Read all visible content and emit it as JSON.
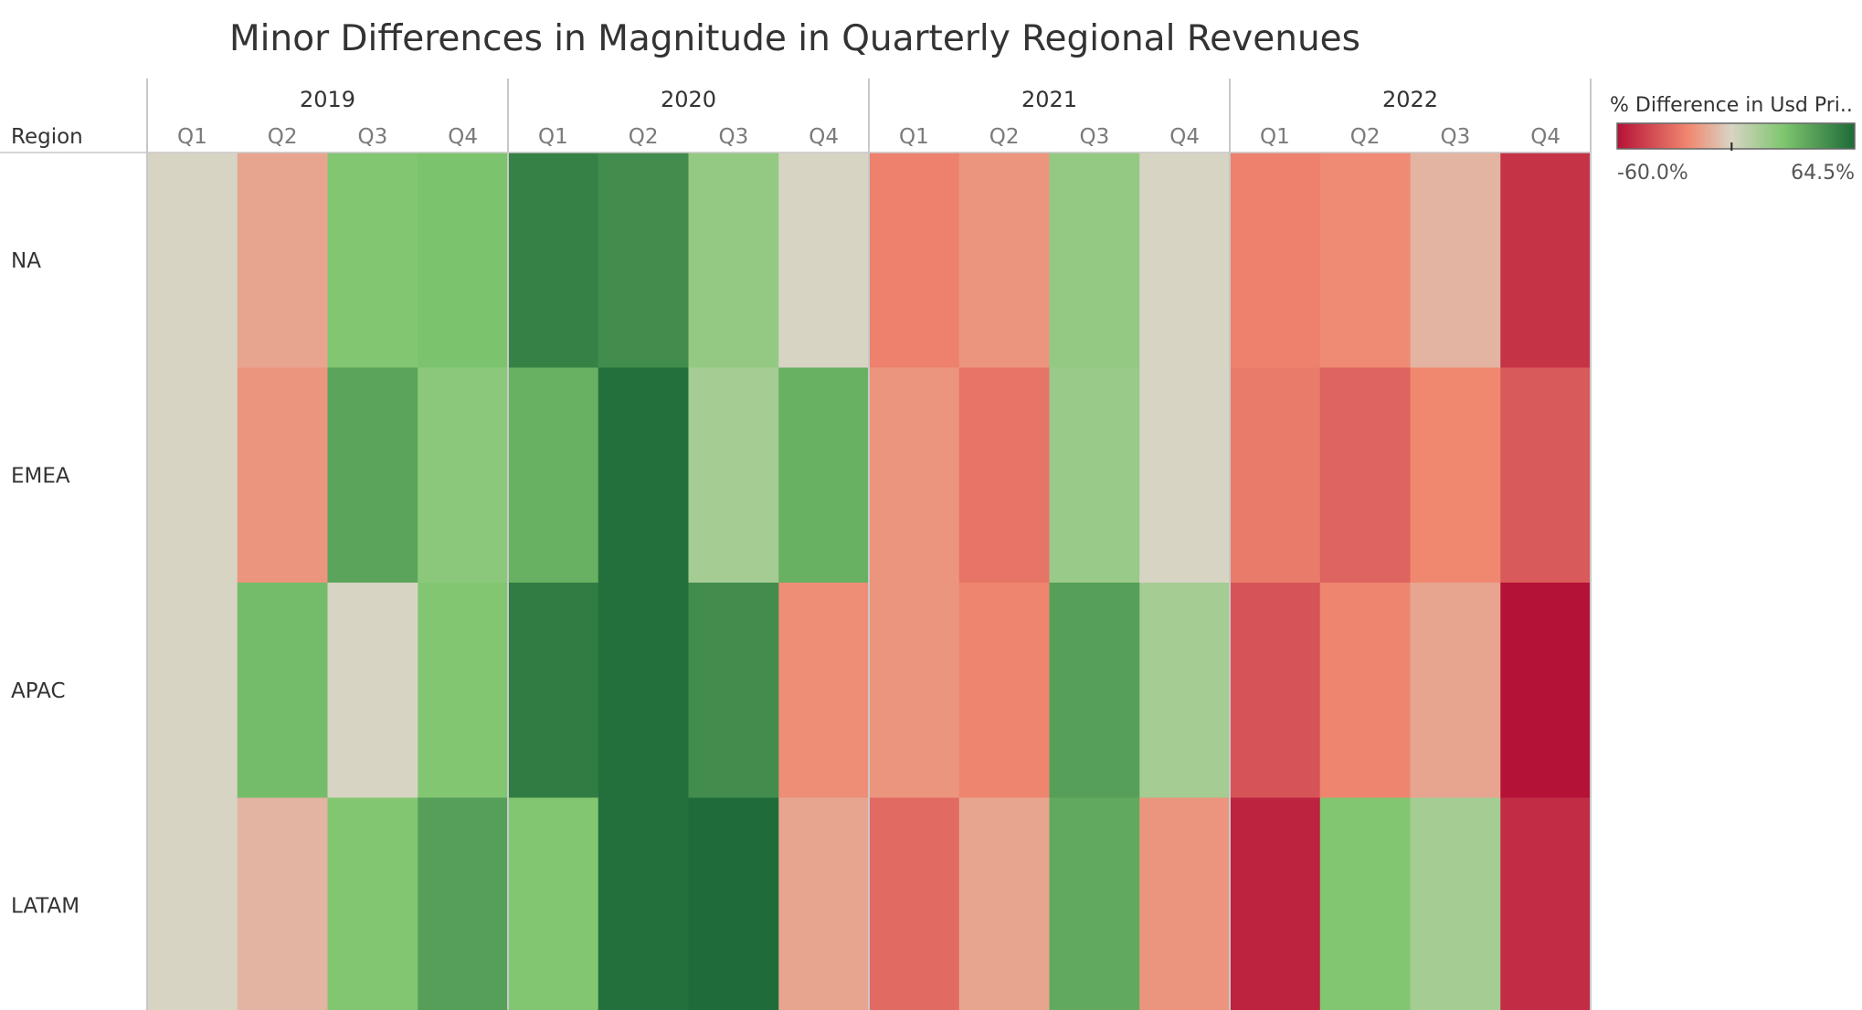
{
  "chart_data": {
    "type": "heatmap",
    "title": "Minor Differences in Magnitude in Quarterly Regional Revenues",
    "row_header": "Region",
    "rows": [
      "NA",
      "EMEA",
      "APAC",
      "LATAM"
    ],
    "years": [
      "2019",
      "2020",
      "2021",
      "2022"
    ],
    "quarters": [
      "Q1",
      "Q2",
      "Q3",
      "Q4"
    ],
    "legend": {
      "title": "% Difference in Usd Pri..",
      "min_label": "-60.0%",
      "max_label": "64.5%",
      "min": -60.0,
      "max": 64.5,
      "marker": 0
    },
    "colors": {
      "negative_extreme": "#b51237",
      "negative_mid": "#f08870",
      "neutral": "#d8d4c4",
      "positive_mid": "#7fc66f",
      "positive_extreme": "#1e6a38"
    },
    "values": [
      [
        0,
        -15,
        25,
        27,
        55,
        50,
        20,
        0,
        -26,
        -20,
        20,
        0,
        -26,
        -23,
        -10,
        -50
      ],
      [
        0,
        -20,
        40,
        22,
        35,
        62,
        15,
        35,
        -20,
        -30,
        18,
        0,
        -28,
        -35,
        -24,
        -38
      ],
      [
        0,
        30,
        0,
        25,
        57,
        62,
        50,
        -22,
        -20,
        -25,
        42,
        15,
        -40,
        -25,
        -15,
        -60
      ],
      [
        0,
        -10,
        25,
        42,
        25,
        62,
        64,
        -15,
        -33,
        -15,
        38,
        -20,
        -55,
        25,
        15,
        -52
      ]
    ]
  }
}
